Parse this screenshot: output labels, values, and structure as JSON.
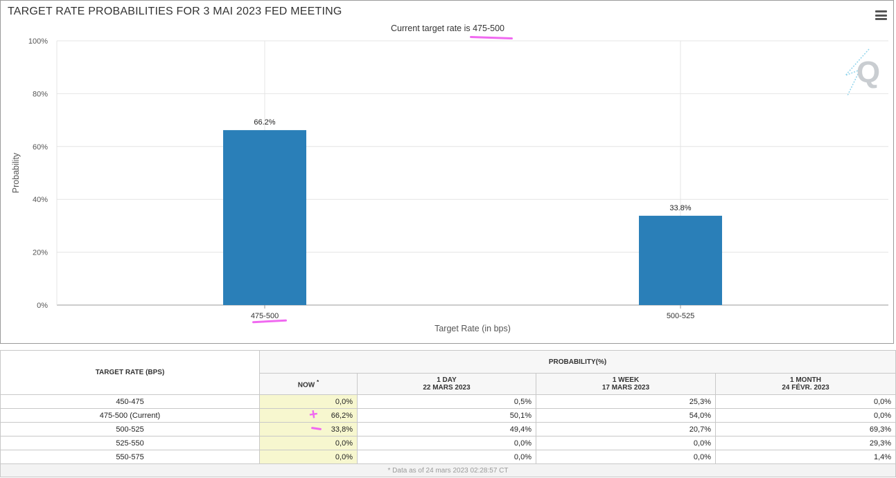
{
  "chart_data": {
    "type": "bar",
    "title": "TARGET RATE PROBABILITIES FOR 3 MAI 2023 FED MEETING",
    "subtitle_prefix": "Current target rate is ",
    "subtitle_rate": "475-500",
    "categories": [
      "475-500",
      "500-525"
    ],
    "values": [
      66.2,
      33.8
    ],
    "data_labels": [
      "66.2%",
      "33.8%"
    ],
    "xlabel": "Target Rate (in bps)",
    "ylabel": "Probability",
    "ylim": [
      0,
      100
    ],
    "y_ticks": [
      0,
      20,
      40,
      60,
      80,
      100
    ],
    "y_tick_labels": [
      "0%",
      "20%",
      "40%",
      "60%",
      "80%",
      "100%"
    ],
    "bar_color": "#2a7fb8",
    "grid": true,
    "highlighted_category": "475-500"
  },
  "annotation_color": "#f069f0",
  "table": {
    "col_rate": "TARGET RATE (BPS)",
    "group_header": "PROBABILITY(%)",
    "columns": [
      {
        "label": "NOW",
        "sup": "*"
      },
      {
        "label": "1 DAY",
        "date": "22 MARS 2023"
      },
      {
        "label": "1 WEEK",
        "date": "17 MARS 2023"
      },
      {
        "label": "1 MONTH",
        "date": "24 FÉVR. 2023"
      }
    ],
    "rows": [
      {
        "rate": "450-475",
        "now": "0,0%",
        "day": "0,5%",
        "week": "25,3%",
        "month": "0,0%"
      },
      {
        "rate": "475-500 (Current)",
        "now": "66,2%",
        "day": "50,1%",
        "week": "54,0%",
        "month": "0,0%"
      },
      {
        "rate": "500-525",
        "now": "33,8%",
        "day": "49,4%",
        "week": "20,7%",
        "month": "69,3%"
      },
      {
        "rate": "525-550",
        "now": "0,0%",
        "day": "0,0%",
        "week": "0,0%",
        "month": "29,3%"
      },
      {
        "rate": "550-575",
        "now": "0,0%",
        "day": "0,0%",
        "week": "0,0%",
        "month": "1,4%"
      }
    ],
    "footer": "* Data as of 24 mars 2023 02:28:57 CT"
  }
}
